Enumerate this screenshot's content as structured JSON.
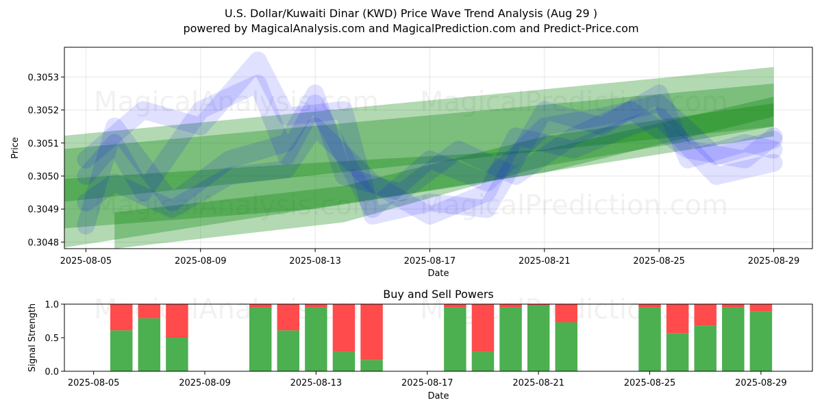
{
  "chart_data": [
    {
      "type": "area",
      "title": "U.S. Dollar/Kuwaiti Dinar (KWD) Price Wave Trend Analysis (Aug 29 )",
      "subtitle": "powered by MagicalAnalysis.com and MagicalPrediction.com and Predict-Price.com",
      "xlabel": "Date",
      "ylabel": "Price",
      "xlim": [
        "2025-08-04",
        "2025-08-30"
      ],
      "ylim": [
        0.30478,
        0.30539
      ],
      "x_ticks": [
        "2025-08-05",
        "2025-08-09",
        "2025-08-13",
        "2025-08-17",
        "2025-08-21",
        "2025-08-25",
        "2025-08-29"
      ],
      "y_ticks": [
        "0.3048",
        "0.3049",
        "0.3050",
        "0.3051",
        "0.3052",
        "0.3053"
      ],
      "grid": true,
      "colors": {
        "blue": "#0000ff",
        "green": "#008000"
      },
      "green_bands": [
        {
          "name": "trend-band-1",
          "x": [
            "2025-08-04",
            "2025-08-29"
          ],
          "low": [
            0.30492,
            0.30515
          ],
          "high": [
            0.30512,
            0.30533
          ]
        },
        {
          "name": "trend-band-2",
          "x": [
            "2025-08-04",
            "2025-08-29"
          ],
          "low": [
            0.30478,
            0.30512
          ],
          "high": [
            0.30508,
            0.30528
          ]
        },
        {
          "name": "trend-band-3",
          "x": [
            "2025-08-04",
            "2025-08-13",
            "2025-08-21",
            "2025-08-29"
          ],
          "low": [
            0.30484,
            0.3049,
            0.30501,
            0.30518
          ],
          "high": [
            0.30499,
            0.30504,
            0.30508,
            0.30524
          ]
        },
        {
          "name": "trend-band-4",
          "x": [
            "2025-08-06",
            "2025-08-14",
            "2025-08-21",
            "2025-08-29"
          ],
          "low": [
            0.30478,
            0.30486,
            0.30503,
            0.30515
          ],
          "high": [
            0.30489,
            0.30497,
            0.30512,
            0.30522
          ]
        }
      ],
      "blue_waves": [
        {
          "name": "wave-1",
          "x": [
            "2025-08-05",
            "2025-08-06",
            "2025-08-07",
            "2025-08-09",
            "2025-08-11",
            "2025-08-12",
            "2025-08-13",
            "2025-08-15",
            "2025-08-17",
            "2025-08-19",
            "2025-08-21",
            "2025-08-23",
            "2025-08-25",
            "2025-08-27",
            "2025-08-29"
          ],
          "y": [
            0.305,
            0.3051,
            0.30495,
            0.3052,
            0.30528,
            0.30506,
            0.30522,
            0.3049,
            0.30505,
            0.30498,
            0.30515,
            0.30518,
            0.30522,
            0.30506,
            0.30511
          ]
        },
        {
          "name": "wave-2",
          "x": [
            "2025-08-05",
            "2025-08-06",
            "2025-08-08",
            "2025-08-10",
            "2025-08-12",
            "2025-08-13",
            "2025-08-14",
            "2025-08-16",
            "2025-08-18",
            "2025-08-20",
            "2025-08-22",
            "2025-08-24",
            "2025-08-26",
            "2025-08-28",
            "2025-08-29"
          ],
          "y": [
            0.30485,
            0.30515,
            0.30492,
            0.30505,
            0.3051,
            0.30525,
            0.305,
            0.30495,
            0.30508,
            0.305,
            0.30512,
            0.3052,
            0.30508,
            0.30505,
            0.30512
          ]
        },
        {
          "name": "wave-3",
          "x": [
            "2025-08-05",
            "2025-08-07",
            "2025-08-09",
            "2025-08-11",
            "2025-08-12",
            "2025-08-14",
            "2025-08-15",
            "2025-08-17",
            "2025-08-19",
            "2025-08-21",
            "2025-08-23",
            "2025-08-25",
            "2025-08-26",
            "2025-08-28",
            "2025-08-29"
          ],
          "y": [
            0.30505,
            0.3052,
            0.30515,
            0.30535,
            0.30518,
            0.3052,
            0.30488,
            0.30492,
            0.3049,
            0.3052,
            0.30515,
            0.30525,
            0.30505,
            0.3051,
            0.30508
          ]
        },
        {
          "name": "wave-4",
          "x": [
            "2025-08-05",
            "2025-08-06",
            "2025-08-08",
            "2025-08-10",
            "2025-08-12",
            "2025-08-13",
            "2025-08-15",
            "2025-08-17",
            "2025-08-19",
            "2025-08-20",
            "2025-08-22",
            "2025-08-24",
            "2025-08-25",
            "2025-08-27",
            "2025-08-29"
          ],
          "y": [
            0.30492,
            0.30498,
            0.3049,
            0.305,
            0.30502,
            0.30515,
            0.30498,
            0.30488,
            0.30495,
            0.30512,
            0.30508,
            0.30515,
            0.30518,
            0.305,
            0.30504
          ]
        }
      ],
      "watermarks": [
        "MagicalAnalysis.com",
        "MagicalPrediction.com",
        "MagicalAnalysis.com",
        "MagicalPrediction.com"
      ]
    },
    {
      "type": "bar",
      "title": "Buy and Sell Powers",
      "xlabel": "Date",
      "ylabel": "Signal Strength",
      "xlim": [
        "2025-08-04",
        "2025-08-30"
      ],
      "ylim": [
        0,
        1
      ],
      "x_ticks": [
        "2025-08-05",
        "2025-08-09",
        "2025-08-13",
        "2025-08-17",
        "2025-08-21",
        "2025-08-25",
        "2025-08-29"
      ],
      "y_ticks": [
        "0.0",
        "0.5",
        "1.0"
      ],
      "colors": {
        "buy": "#4caf50",
        "sell": "#ff4b4b"
      },
      "series": [
        {
          "name": "buy",
          "x": [
            "2025-08-06",
            "2025-08-07",
            "2025-08-08",
            "2025-08-11",
            "2025-08-12",
            "2025-08-13",
            "2025-08-14",
            "2025-08-15",
            "2025-08-18",
            "2025-08-19",
            "2025-08-20",
            "2025-08-21",
            "2025-08-22",
            "2025-08-25",
            "2025-08-26",
            "2025-08-27",
            "2025-08-28",
            "2025-08-29"
          ],
          "values": [
            0.61,
            0.79,
            0.5,
            0.95,
            0.61,
            0.95,
            0.29,
            0.17,
            0.95,
            0.29,
            0.95,
            0.98,
            0.73,
            0.95,
            0.57,
            0.68,
            0.95,
            0.89
          ]
        },
        {
          "name": "sell",
          "x": [
            "2025-08-06",
            "2025-08-07",
            "2025-08-08",
            "2025-08-11",
            "2025-08-12",
            "2025-08-13",
            "2025-08-14",
            "2025-08-15",
            "2025-08-18",
            "2025-08-19",
            "2025-08-20",
            "2025-08-21",
            "2025-08-22",
            "2025-08-25",
            "2025-08-26",
            "2025-08-27",
            "2025-08-28",
            "2025-08-29"
          ],
          "values": [
            0.39,
            0.21,
            0.5,
            0.05,
            0.39,
            0.05,
            0.71,
            0.83,
            0.05,
            0.71,
            0.05,
            0.02,
            0.27,
            0.05,
            0.43,
            0.32,
            0.05,
            0.11
          ]
        }
      ],
      "watermarks": [
        "MagicalAnalysis.com",
        "MagicalPrediction.com"
      ]
    }
  ]
}
